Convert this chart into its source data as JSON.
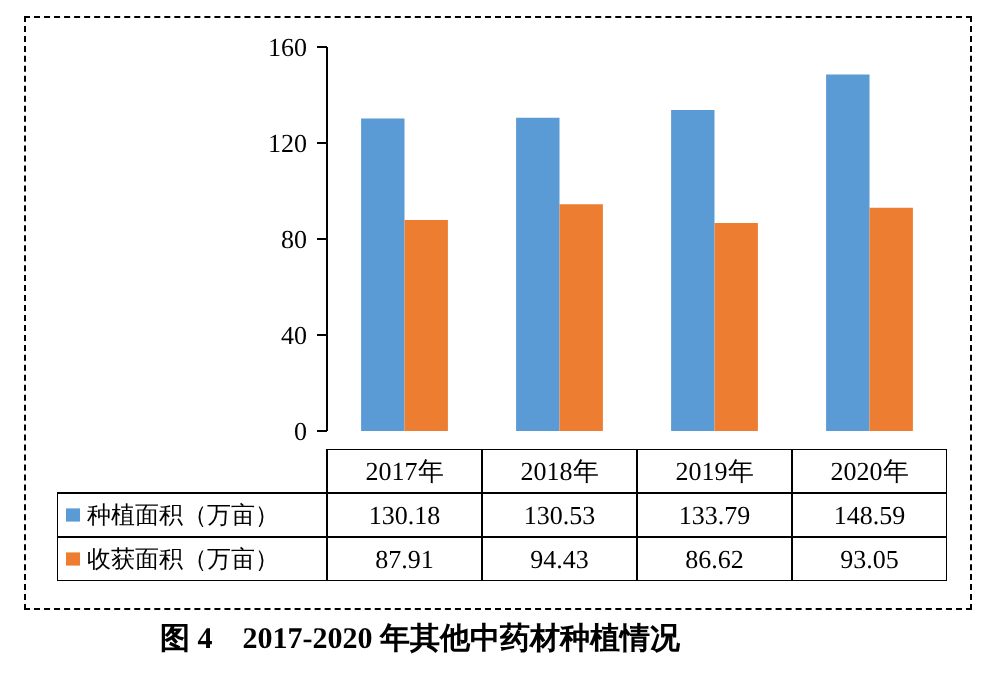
{
  "chart_data": {
    "type": "bar",
    "title": "图 4　2017-2020 年其他中药材种植情况",
    "categories": [
      "2017年",
      "2018年",
      "2019年",
      "2020年"
    ],
    "series": [
      {
        "name": "种植面积（万亩）",
        "color": "#5b9bd5",
        "values": [
          130.18,
          130.53,
          133.79,
          148.59
        ]
      },
      {
        "name": "收获面积（万亩）",
        "color": "#ed7d31",
        "values": [
          87.91,
          94.43,
          86.62,
          93.05
        ]
      }
    ],
    "ylim": [
      0,
      160
    ],
    "yticks": [
      0,
      40,
      80,
      120,
      160
    ],
    "grid": false,
    "legend": "bottom",
    "data_labels": true
  }
}
